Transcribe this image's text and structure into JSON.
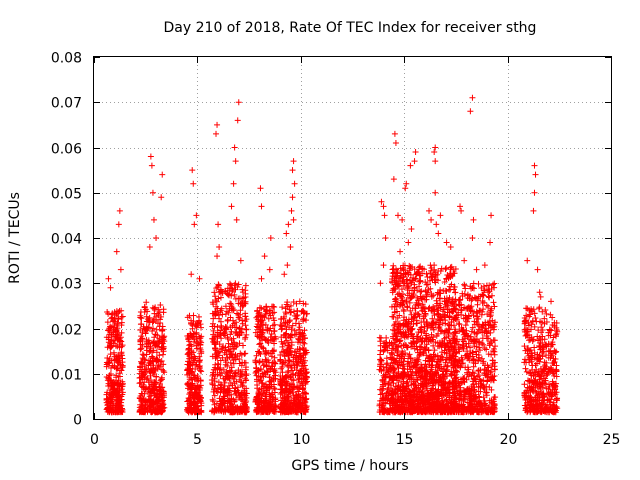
{
  "chart_data": {
    "type": "scatter",
    "title": "Day 210 of 2018, Rate Of TEC Index for receiver sthg",
    "xlabel": "GPS time / hours",
    "ylabel": "ROTI / TECUs",
    "xlim": [
      0,
      25
    ],
    "ylim": [
      0,
      0.08
    ],
    "grid": true,
    "marker": "+",
    "color": "#ff0000",
    "xticks": [
      {
        "value": 0,
        "label": "0"
      },
      {
        "value": 5,
        "label": "5"
      },
      {
        "value": 10,
        "label": "10"
      },
      {
        "value": 15,
        "label": "15"
      },
      {
        "value": 20,
        "label": "20"
      },
      {
        "value": 25,
        "label": "25"
      }
    ],
    "yticks": [
      {
        "value": 0,
        "label": "0"
      },
      {
        "value": 0.01,
        "label": "0.01"
      },
      {
        "value": 0.02,
        "label": "0.02"
      },
      {
        "value": 0.03,
        "label": "0.03"
      },
      {
        "value": 0.04,
        "label": "0.04"
      },
      {
        "value": 0.05,
        "label": "0.05"
      },
      {
        "value": 0.06,
        "label": "0.06"
      },
      {
        "value": 0.07,
        "label": "0.07"
      },
      {
        "value": 0.08,
        "label": "0.08"
      }
    ],
    "series": [
      {
        "name": "ROTI",
        "clusters": [
          {
            "x_range": [
              0.6,
              1.4
            ],
            "count": 320,
            "typical_max": 0.024,
            "outliers": [
              [
                1.25,
                0.046
              ],
              [
                1.2,
                0.043
              ],
              [
                1.1,
                0.037
              ],
              [
                0.7,
                0.031
              ],
              [
                1.3,
                0.033
              ],
              [
                0.8,
                0.029
              ]
            ]
          },
          {
            "x_range": [
              2.2,
              3.4
            ],
            "count": 420,
            "typical_max": 0.026,
            "outliers": [
              [
                2.75,
                0.058
              ],
              [
                2.8,
                0.056
              ],
              [
                2.85,
                0.05
              ],
              [
                3.3,
                0.054
              ],
              [
                3.25,
                0.049
              ],
              [
                2.9,
                0.044
              ],
              [
                3.0,
                0.04
              ],
              [
                2.7,
                0.038
              ]
            ]
          },
          {
            "x_range": [
              4.5,
              5.2
            ],
            "count": 260,
            "typical_max": 0.023,
            "outliers": [
              [
                4.75,
                0.055
              ],
              [
                4.8,
                0.052
              ],
              [
                4.95,
                0.045
              ],
              [
                4.85,
                0.043
              ],
              [
                4.7,
                0.032
              ],
              [
                5.1,
                0.031
              ]
            ]
          },
          {
            "x_range": [
              5.7,
              7.4
            ],
            "count": 520,
            "typical_max": 0.03,
            "outliers": [
              [
                7.0,
                0.07
              ],
              [
                6.95,
                0.066
              ],
              [
                5.95,
                0.065
              ],
              [
                5.9,
                0.063
              ],
              [
                6.8,
                0.06
              ],
              [
                6.85,
                0.057
              ],
              [
                6.75,
                0.052
              ],
              [
                6.65,
                0.047
              ],
              [
                6.9,
                0.044
              ],
              [
                6.0,
                0.043
              ],
              [
                6.05,
                0.038
              ],
              [
                5.95,
                0.036
              ],
              [
                7.1,
                0.035
              ]
            ]
          },
          {
            "x_range": [
              7.8,
              8.8
            ],
            "count": 340,
            "typical_max": 0.025,
            "outliers": [
              [
                8.05,
                0.051
              ],
              [
                8.1,
                0.047
              ],
              [
                8.55,
                0.04
              ],
              [
                8.25,
                0.036
              ],
              [
                8.5,
                0.033
              ],
              [
                8.1,
                0.031
              ]
            ]
          },
          {
            "x_range": [
              9.0,
              10.3
            ],
            "count": 480,
            "typical_max": 0.026,
            "outliers": [
              [
                9.65,
                0.057
              ],
              [
                9.6,
                0.055
              ],
              [
                9.7,
                0.052
              ],
              [
                9.6,
                0.049
              ],
              [
                9.55,
                0.046
              ],
              [
                9.65,
                0.044
              ],
              [
                9.4,
                0.043
              ],
              [
                9.3,
                0.041
              ],
              [
                9.5,
                0.038
              ],
              [
                9.35,
                0.034
              ],
              [
                9.2,
                0.032
              ]
            ]
          },
          {
            "x_range": [
              13.8,
              14.4
            ],
            "count": 140,
            "typical_max": 0.018,
            "outliers": [
              [
                13.9,
                0.048
              ],
              [
                14.0,
                0.047
              ],
              [
                14.05,
                0.045
              ],
              [
                14.1,
                0.04
              ],
              [
                14.0,
                0.034
              ],
              [
                13.85,
                0.03
              ]
            ]
          },
          {
            "x_range": [
              14.4,
              16.0
            ],
            "count": 800,
            "typical_max": 0.034,
            "outliers": [
              [
                14.55,
                0.063
              ],
              [
                14.6,
                0.061
              ],
              [
                15.55,
                0.059
              ],
              [
                15.5,
                0.057
              ],
              [
                15.3,
                0.056
              ],
              [
                15.1,
                0.052
              ],
              [
                15.05,
                0.051
              ],
              [
                14.5,
                0.053
              ],
              [
                14.7,
                0.045
              ],
              [
                14.9,
                0.044
              ],
              [
                15.35,
                0.042
              ],
              [
                15.2,
                0.039
              ],
              [
                14.8,
                0.037
              ]
            ]
          },
          {
            "x_range": [
              16.0,
              17.5
            ],
            "count": 700,
            "typical_max": 0.034,
            "outliers": [
              [
                16.5,
                0.06
              ],
              [
                16.45,
                0.059
              ],
              [
                16.5,
                0.057
              ],
              [
                16.5,
                0.05
              ],
              [
                16.3,
                0.044
              ],
              [
                16.55,
                0.043
              ],
              [
                16.2,
                0.046
              ],
              [
                16.75,
                0.045
              ],
              [
                17.05,
                0.039
              ],
              [
                17.25,
                0.038
              ],
              [
                16.65,
                0.041
              ]
            ]
          },
          {
            "x_range": [
              17.4,
              19.4
            ],
            "count": 620,
            "typical_max": 0.03,
            "outliers": [
              [
                18.3,
                0.071
              ],
              [
                18.2,
                0.068
              ],
              [
                17.7,
                0.047
              ],
              [
                17.75,
                0.046
              ],
              [
                19.2,
                0.045
              ],
              [
                18.35,
                0.044
              ],
              [
                19.15,
                0.039
              ],
              [
                18.3,
                0.04
              ],
              [
                18.9,
                0.034
              ],
              [
                17.9,
                0.035
              ],
              [
                18.5,
                0.033
              ]
            ]
          },
          {
            "x_range": [
              20.8,
              22.4
            ],
            "count": 460,
            "typical_max": 0.025,
            "outliers": [
              [
                21.3,
                0.056
              ],
              [
                21.35,
                0.054
              ],
              [
                21.3,
                0.05
              ],
              [
                21.25,
                0.046
              ],
              [
                20.95,
                0.035
              ],
              [
                21.45,
                0.033
              ],
              [
                22.1,
                0.026
              ],
              [
                21.55,
                0.028
              ],
              [
                21.6,
                0.027
              ]
            ]
          }
        ]
      }
    ]
  }
}
